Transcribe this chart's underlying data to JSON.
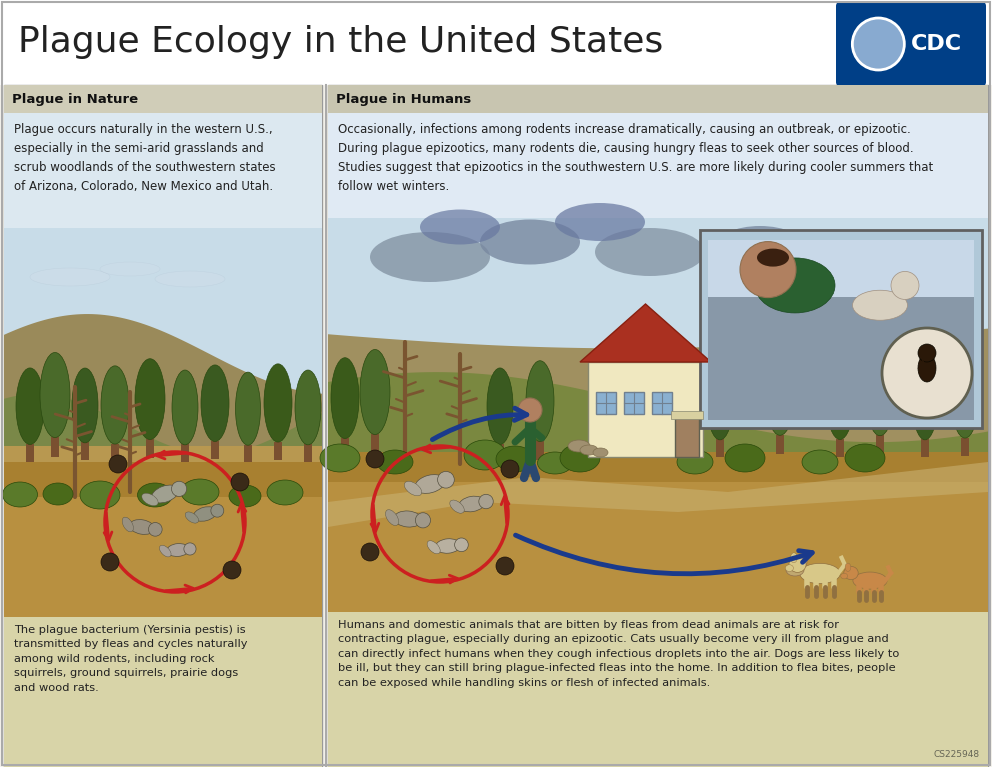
{
  "title": "Plague Ecology in the United States",
  "title_fontsize": 26,
  "background_color": "#f5f3ec",
  "left_panel_title": "Plague in Nature",
  "right_panel_title": "Plague in Humans",
  "left_panel_text": "Plague occurs naturally in the western U.S.,\nespecially in the semi-arid grasslands and\nscrub woodlands of the southwestern states\nof Arizona, Colorado, New Mexico and Utah.",
  "right_panel_text": "Occasionally, infections among rodents increase dramatically, causing an outbreak, or epizootic.\nDuring plague epizootics, many rodents die, causing hungry fleas to seek other sources of blood.\nStudies suggest that epizootics in the southwestern U.S. are more likely during cooler summers that\nfollow wet winters.",
  "left_bottom_text": "The plague bacterium (Yersinia pestis) is\ntransmitted by fleas and cycles naturally\namong wild rodents, including rock\nsquirrels, ground squirrels, prairie dogs\nand wood rats.",
  "right_bottom_text": "Humans and domestic animals that are bitten by fleas from dead animals are at risk for\ncontracting plague, especially during an epizootic. Cats usually become very ill from plague and\ncan directly infect humans when they cough infectious droplets into the air. Dogs are less likely to\nbe ill, but they can still bring plague-infected fleas into the home. In addition to flea bites, people\ncan be exposed while handling skins or flesh of infected animals.",
  "code_text": "CS225948",
  "sky_color": "#c8dce8",
  "sky_color2": "#a8c4d8",
  "ground_color": "#b89850",
  "ground_color2": "#a08040",
  "hill_green": "#7a8a4a",
  "hill_green2": "#6a7a3a",
  "hill_tan": "#b09858",
  "hill_tan2": "#a08848",
  "tree_green": "#4a6a2a",
  "tree_green2": "#3a5a1a",
  "trunk_color": "#7a5030",
  "cycle_red": "#cc2020",
  "arrow_blue": "#1a3a8c",
  "cdc_blue": "#003f87",
  "panel_border": "#999999",
  "header_bg_left": "#d0cdb8",
  "header_bg_right": "#c8c5b0",
  "text_bg_left": "#dce8f0",
  "text_bg_right": "#e0eaf4",
  "bottom_bg": "#d8d4a8",
  "white": "#ffffff",
  "house_wall": "#f0e8c0",
  "house_roof": "#aa3020",
  "house_window": "#8ab0d0",
  "house_door": "#a08060",
  "inset_bg": "#b0c8d8",
  "inset_border": "#606060",
  "person_shirt": "#2a6030",
  "person_skin": "#b08060",
  "dog_color": "#d8c890",
  "dog2_color": "#c89050"
}
